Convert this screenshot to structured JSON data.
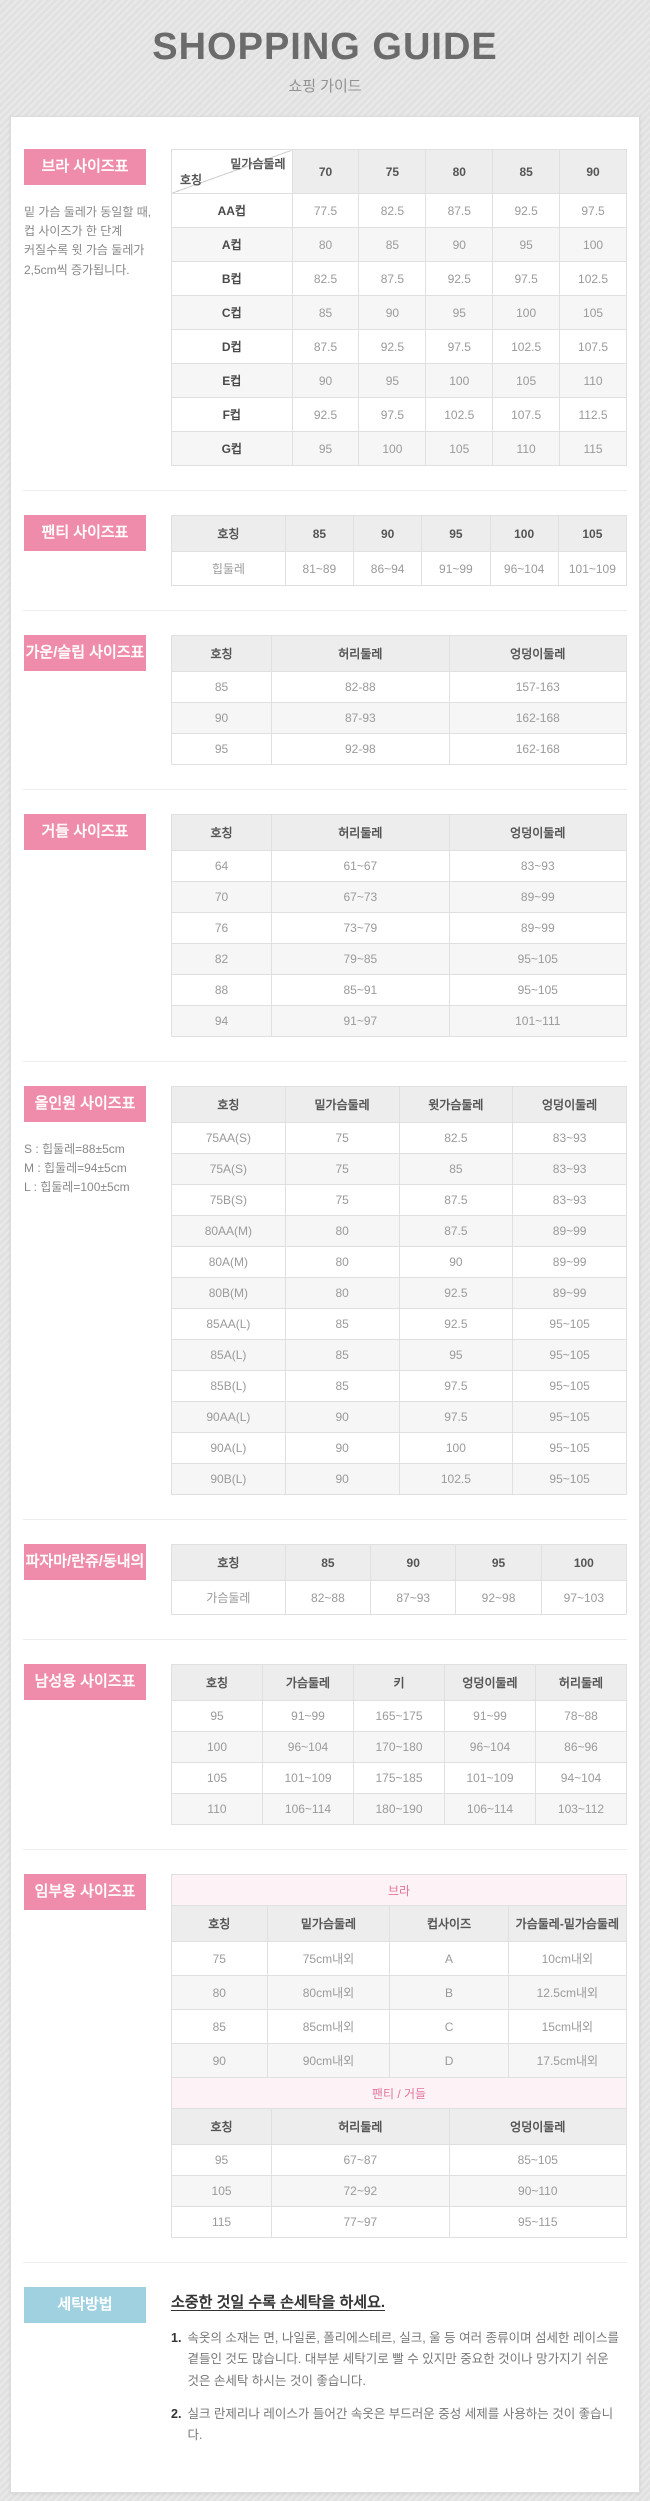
{
  "header": {
    "title": "SHOPPING GUIDE",
    "subtitle": "쇼핑 가이드"
  },
  "colors": {
    "accent_pink": "#ef8cab",
    "accent_blue": "#9fd1e0",
    "subtitle_pink_bg": "#fdf3f7",
    "subtitle_pink_text": "#e2749c",
    "header_cell_bg": "#ededed"
  },
  "sections": {
    "bra": {
      "label": "브라 사이즈표",
      "note": [
        "밑 가슴 둘레가 동일할 때,",
        "컵 사이즈가 한 단계",
        "커질수록 윗 가슴 둘레가",
        "2,5cm씩 증가됩니다."
      ],
      "table": {
        "corner": {
          "top": "밑가슴둘레",
          "bottom": "호칭"
        },
        "headers": [
          "70",
          "75",
          "80",
          "85",
          "90"
        ],
        "rows": [
          {
            "label": "AA컵",
            "values": [
              "77.5",
              "82.5",
              "87.5",
              "92.5",
              "97.5"
            ]
          },
          {
            "label": "A컵",
            "values": [
              "80",
              "85",
              "90",
              "95",
              "100"
            ]
          },
          {
            "label": "B컵",
            "values": [
              "82.5",
              "87.5",
              "92.5",
              "97.5",
              "102.5"
            ]
          },
          {
            "label": "C컵",
            "values": [
              "85",
              "90",
              "95",
              "100",
              "105"
            ]
          },
          {
            "label": "D컵",
            "values": [
              "87.5",
              "92.5",
              "97.5",
              "102.5",
              "107.5"
            ]
          },
          {
            "label": "E컵",
            "values": [
              "90",
              "95",
              "100",
              "105",
              "110"
            ]
          },
          {
            "label": "F컵",
            "values": [
              "92.5",
              "97.5",
              "102.5",
              "107.5",
              "112.5"
            ]
          },
          {
            "label": "G컵",
            "values": [
              "95",
              "100",
              "105",
              "110",
              "115"
            ]
          }
        ]
      }
    },
    "panty": {
      "label": "팬티 사이즈표",
      "table": {
        "headers": [
          "호칭",
          "85",
          "90",
          "95",
          "100",
          "105"
        ],
        "rows": [
          [
            "힙둘레",
            "81~89",
            "86~94",
            "91~99",
            "96~104",
            "101~109"
          ]
        ]
      }
    },
    "gown": {
      "label": "가운/슬립 사이즈표",
      "table": {
        "headers": [
          "호칭",
          "허리둘레",
          "엉덩이둘레"
        ],
        "rows": [
          [
            "85",
            "82-88",
            "157-163"
          ],
          [
            "90",
            "87-93",
            "162-168"
          ],
          [
            "95",
            "92-98",
            "162-168"
          ]
        ]
      }
    },
    "girdle": {
      "label": "거들 사이즈표",
      "table": {
        "headers": [
          "호칭",
          "허리둘레",
          "엉덩이둘레"
        ],
        "rows": [
          [
            "64",
            "61~67",
            "83~93"
          ],
          [
            "70",
            "67~73",
            "89~99"
          ],
          [
            "76",
            "73~79",
            "89~99"
          ],
          [
            "82",
            "79~85",
            "95~105"
          ],
          [
            "88",
            "85~91",
            "95~105"
          ],
          [
            "94",
            "91~97",
            "101~111"
          ]
        ]
      }
    },
    "allinone": {
      "label": "올인원 사이즈표",
      "notes": [
        "S : 힙둘레=88±5cm",
        "M : 힙둘레=94±5cm",
        "L : 힙둘레=100±5cm"
      ],
      "table": {
        "headers": [
          "호칭",
          "밑가슴둘레",
          "윗가슴둘레",
          "엉덩이둘레"
        ],
        "rows": [
          [
            "75AA(S)",
            "75",
            "82.5",
            "83~93"
          ],
          [
            "75A(S)",
            "75",
            "85",
            "83~93"
          ],
          [
            "75B(S)",
            "75",
            "87.5",
            "83~93"
          ],
          [
            "80AA(M)",
            "80",
            "87.5",
            "89~99"
          ],
          [
            "80A(M)",
            "80",
            "90",
            "89~99"
          ],
          [
            "80B(M)",
            "80",
            "92.5",
            "89~99"
          ],
          [
            "85AA(L)",
            "85",
            "92.5",
            "95~105"
          ],
          [
            "85A(L)",
            "85",
            "95",
            "95~105"
          ],
          [
            "85B(L)",
            "85",
            "97.5",
            "95~105"
          ],
          [
            "90AA(L)",
            "90",
            "97.5",
            "95~105"
          ],
          [
            "90A(L)",
            "90",
            "100",
            "95~105"
          ],
          [
            "90B(L)",
            "90",
            "102.5",
            "95~105"
          ]
        ]
      }
    },
    "pajama": {
      "label": "파자마/란쥬/동내의",
      "table": {
        "headers": [
          "호칭",
          "85",
          "90",
          "95",
          "100"
        ],
        "rows": [
          [
            "가슴둘레",
            "82~88",
            "87~93",
            "92~98",
            "97~103"
          ]
        ]
      }
    },
    "mens": {
      "label": "남성용 사이즈표",
      "table": {
        "headers": [
          "호칭",
          "가슴둘레",
          "키",
          "엉덩이둘레",
          "허리둘레"
        ],
        "rows": [
          [
            "95",
            "91~99",
            "165~175",
            "91~99",
            "78~88"
          ],
          [
            "100",
            "96~104",
            "170~180",
            "96~104",
            "86~96"
          ],
          [
            "105",
            "101~109",
            "175~185",
            "101~109",
            "94~104"
          ],
          [
            "110",
            "106~114",
            "180~190",
            "106~114",
            "103~112"
          ]
        ]
      }
    },
    "maternity": {
      "label": "임부용 사이즈표",
      "bra_subtitle": "브라",
      "bra_table": {
        "headers": [
          "호칭",
          "밑가슴둘레",
          "컵사이즈",
          "가슴둘레-밑가슴둘레"
        ],
        "rows": [
          [
            "75",
            "75cm내외",
            "A",
            "10cm내외"
          ],
          [
            "80",
            "80cm내외",
            "B",
            "12.5cm내외"
          ],
          [
            "85",
            "85cm내외",
            "C",
            "15cm내외"
          ],
          [
            "90",
            "90cm내외",
            "D",
            "17.5cm내외"
          ]
        ]
      },
      "panty_subtitle": "팬티 / 거들",
      "panty_table": {
        "headers": [
          "호칭",
          "허리둘레",
          "엉덩이둘레"
        ],
        "rows": [
          [
            "95",
            "67~87",
            "85~105"
          ],
          [
            "105",
            "72~92",
            "90~110"
          ],
          [
            "115",
            "77~97",
            "95~115"
          ]
        ]
      }
    },
    "washing": {
      "label": "세탁방법",
      "title": "소중한 것일 수록 손세탁을 하세요.",
      "items": [
        {
          "num": "1.",
          "text": "속옷의 소재는 면, 나일론, 폴리에스테르, 실크, 울 등 여러 종류이며 섬세한 레이스를 곁들인 것도 많습니다. 대부분 세탁기로 빨 수 있지만 중요한 것이나 망가지기 쉬운 것은 손세탁 하시는 것이 좋습니다."
        },
        {
          "num": "2.",
          "text": "실크 란제리나 레이스가 들어간 속옷은 부드러운 중성 세제를 사용하는 것이 좋습니다."
        }
      ]
    }
  }
}
